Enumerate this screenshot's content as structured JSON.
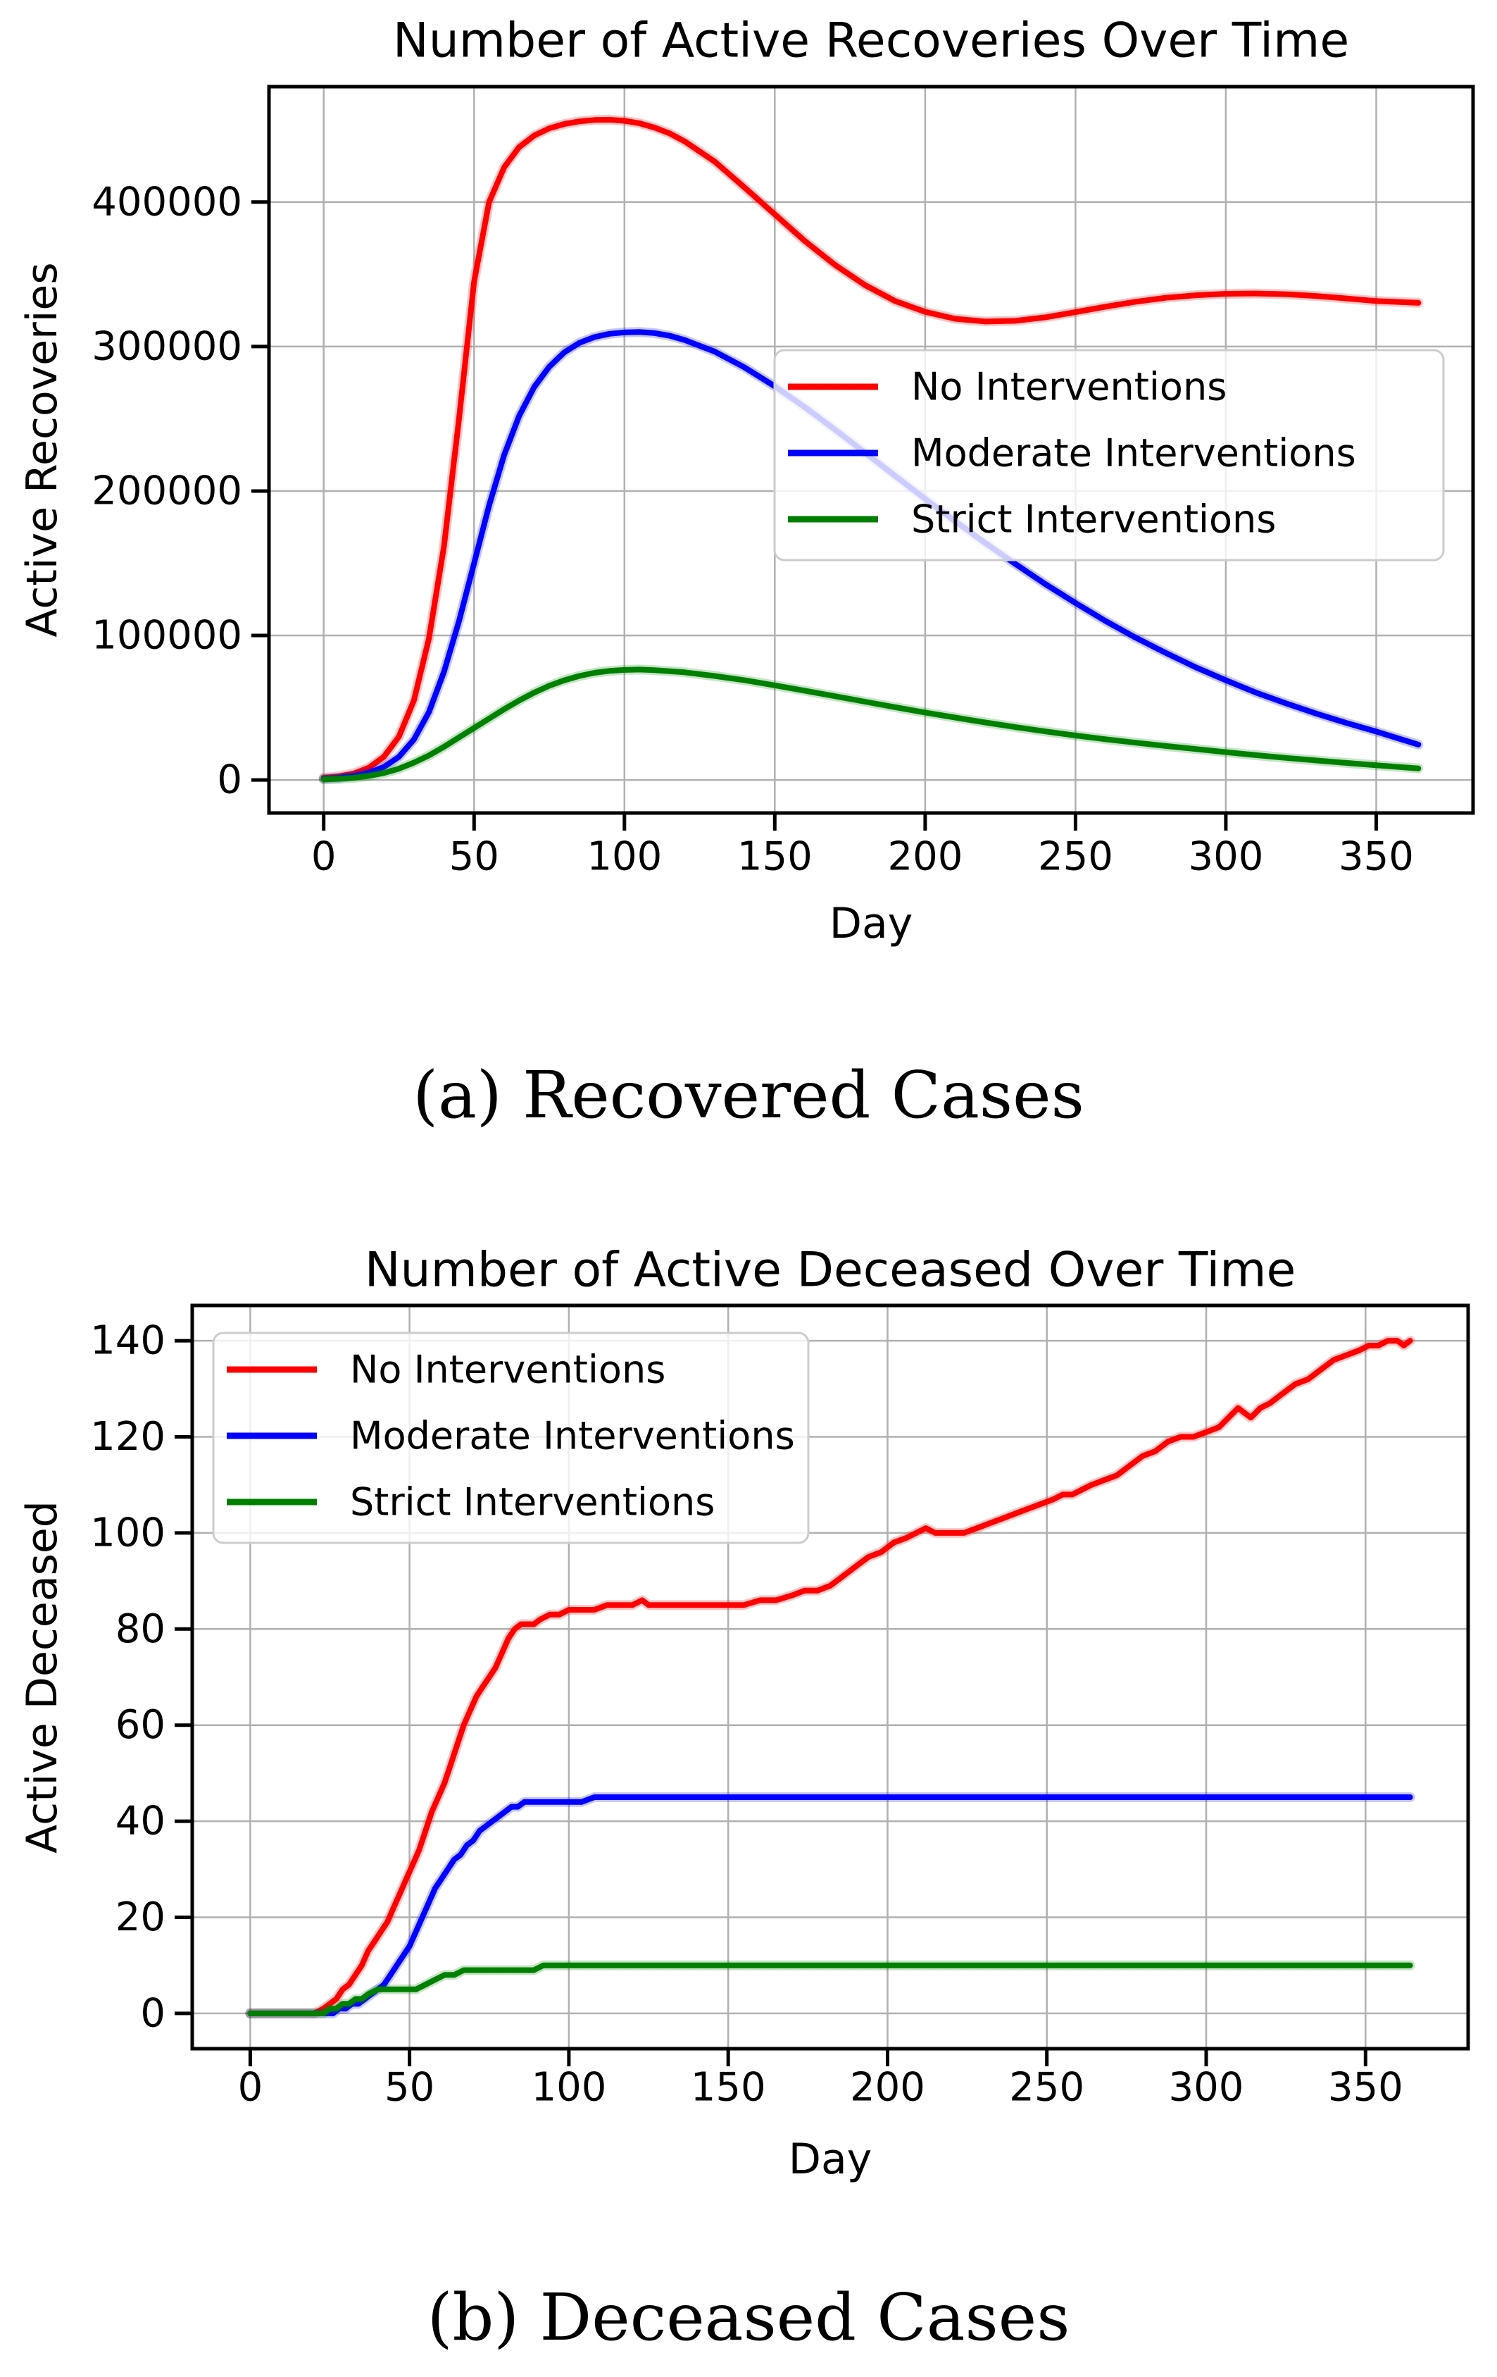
{
  "style": {
    "red": "#ff0000",
    "blue": "#0000ff",
    "green": "#008000",
    "grid": "#b0b0b0",
    "axis": "#000000",
    "legend_border": "#cccccc",
    "background": "#ffffff"
  },
  "figures": [
    {
      "caption": "(a) Recovered Cases"
    },
    {
      "caption": "(b) Deceased Cases"
    }
  ],
  "chart_data": [
    {
      "type": "line",
      "title": "Number of Active Recoveries Over Time",
      "xlabel": "Day",
      "ylabel": "Active Recoveries",
      "xlim": [
        -18.2,
        382.2
      ],
      "ylim": [
        -22850,
        479850
      ],
      "xticks": [
        0,
        50,
        100,
        150,
        200,
        250,
        300,
        350
      ],
      "yticks": [
        0,
        100000,
        200000,
        300000,
        400000
      ],
      "grid": true,
      "legend_loc": "center right",
      "series": [
        {
          "name": "No Interventions",
          "color": "#ff0000",
          "x": [
            0,
            5,
            10,
            15,
            20,
            25,
            30,
            35,
            40,
            45,
            50,
            55,
            60,
            65,
            70,
            75,
            80,
            85,
            90,
            95,
            100,
            105,
            110,
            115,
            120,
            130,
            140,
            150,
            160,
            170,
            180,
            190,
            200,
            210,
            220,
            230,
            240,
            250,
            260,
            270,
            280,
            290,
            300,
            310,
            320,
            330,
            340,
            350,
            364
          ],
          "y": [
            1500,
            2500,
            4500,
            8500,
            16000,
            30000,
            55000,
            98000,
            162000,
            250000,
            345000,
            400000,
            424000,
            438000,
            446000,
            451000,
            454000,
            455800,
            456800,
            457000,
            456200,
            454500,
            451500,
            447500,
            442000,
            428000,
            410000,
            391500,
            373000,
            356500,
            342500,
            331500,
            324000,
            319200,
            317300,
            317800,
            320200,
            323800,
            327600,
            331000,
            333700,
            335500,
            336500,
            336700,
            336200,
            335000,
            333300,
            331500,
            330200
          ]
        },
        {
          "name": "Moderate Interventions",
          "color": "#0000ff",
          "x": [
            0,
            5,
            10,
            15,
            20,
            25,
            30,
            35,
            40,
            45,
            50,
            55,
            60,
            65,
            70,
            75,
            80,
            85,
            90,
            95,
            100,
            105,
            110,
            115,
            120,
            130,
            140,
            150,
            160,
            170,
            180,
            190,
            200,
            210,
            220,
            230,
            240,
            250,
            260,
            270,
            280,
            290,
            300,
            310,
            320,
            330,
            340,
            350,
            364
          ],
          "y": [
            800,
            1500,
            2800,
            5000,
            9000,
            16000,
            28000,
            47000,
            75000,
            110000,
            150000,
            190000,
            225000,
            252000,
            272000,
            286000,
            296000,
            302500,
            306500,
            308800,
            309800,
            310000,
            309300,
            307500,
            304500,
            296500,
            285500,
            272500,
            258000,
            242500,
            226500,
            210500,
            194500,
            179000,
            164000,
            149500,
            135500,
            122500,
            110000,
            98500,
            88000,
            78000,
            69000,
            60500,
            53000,
            46000,
            39500,
            33500,
            24500
          ]
        },
        {
          "name": "Strict Interventions",
          "color": "#008000",
          "x": [
            0,
            5,
            10,
            15,
            20,
            25,
            30,
            35,
            40,
            45,
            50,
            55,
            60,
            65,
            70,
            75,
            80,
            85,
            90,
            95,
            100,
            105,
            110,
            120,
            130,
            140,
            150,
            160,
            170,
            180,
            190,
            200,
            210,
            220,
            230,
            240,
            250,
            260,
            270,
            280,
            290,
            300,
            310,
            320,
            330,
            340,
            350,
            364
          ],
          "y": [
            400,
            800,
            1500,
            2800,
            4800,
            7800,
            12000,
            17000,
            23000,
            29500,
            36000,
            42500,
            49000,
            55000,
            60500,
            65200,
            69000,
            72000,
            74200,
            75500,
            76200,
            76400,
            76000,
            74500,
            72000,
            69000,
            65500,
            61800,
            58000,
            54200,
            50400,
            46700,
            43200,
            39800,
            36600,
            33600,
            30800,
            28200,
            25800,
            23500,
            21400,
            19300,
            17200,
            15300,
            13500,
            11800,
            10200,
            8000
          ]
        }
      ]
    },
    {
      "type": "line",
      "title": "Number of Active Deceased Over Time",
      "xlabel": "Day",
      "ylabel": "Active Deceased",
      "xlim": [
        -18.2,
        382.2
      ],
      "ylim": [
        -7.35,
        147.35
      ],
      "xticks": [
        0,
        50,
        100,
        150,
        200,
        250,
        300,
        350
      ],
      "yticks": [
        0,
        20,
        40,
        60,
        80,
        100,
        120,
        140
      ],
      "grid": true,
      "legend_loc": "upper left",
      "series": [
        {
          "name": "No Interventions",
          "color": "#ff0000",
          "x": [
            0,
            20,
            23,
            25,
            27,
            29,
            31,
            33,
            35,
            37,
            39,
            41,
            43,
            45,
            47,
            49,
            51,
            53,
            55,
            57,
            59,
            61,
            63,
            65,
            67,
            69,
            71,
            73,
            75,
            77,
            79,
            81,
            83,
            85,
            87,
            89,
            91,
            94,
            97,
            100,
            104,
            108,
            112,
            116,
            120,
            123,
            125,
            128,
            132,
            136,
            140,
            145,
            150,
            155,
            160,
            165,
            170,
            174,
            178,
            182,
            186,
            190,
            194,
            198,
            202,
            206,
            209,
            212,
            215,
            218,
            221,
            224,
            228,
            232,
            236,
            240,
            244,
            248,
            252,
            255,
            258,
            261,
            264,
            268,
            272,
            276,
            280,
            284,
            288,
            292,
            296,
            300,
            304,
            307,
            310,
            312,
            314,
            317,
            320,
            324,
            328,
            332,
            336,
            340,
            344,
            348,
            351,
            354,
            357,
            360,
            362,
            364
          ],
          "y": [
            0,
            0,
            1,
            2,
            3,
            5,
            6,
            8,
            10,
            13,
            15,
            17,
            19,
            22,
            25,
            28,
            31,
            34,
            38,
            42,
            45,
            48,
            52,
            56,
            60,
            63,
            66,
            68,
            70,
            72,
            75,
            78,
            80,
            81,
            81,
            81,
            82,
            83,
            83,
            84,
            84,
            84,
            85,
            85,
            85,
            86,
            85,
            85,
            85,
            85,
            85,
            85,
            85,
            85,
            86,
            86,
            87,
            88,
            88,
            89,
            91,
            93,
            95,
            96,
            98,
            99,
            100,
            101,
            100,
            100,
            100,
            100,
            101,
            102,
            103,
            104,
            105,
            106,
            107,
            108,
            108,
            109,
            110,
            111,
            112,
            114,
            116,
            117,
            119,
            120,
            120,
            121,
            122,
            124,
            126,
            125,
            124,
            126,
            127,
            129,
            131,
            132,
            134,
            136,
            137,
            138,
            139,
            139,
            140,
            140,
            139,
            140
          ]
        },
        {
          "name": "Moderate Interventions",
          "color": "#0000ff",
          "x": [
            0,
            26,
            28,
            30,
            32,
            34,
            36,
            38,
            40,
            42,
            44,
            46,
            48,
            50,
            52,
            54,
            56,
            58,
            60,
            62,
            64,
            66,
            68,
            70,
            72,
            74,
            76,
            78,
            80,
            82,
            84,
            86,
            88,
            91,
            95,
            100,
            104,
            108,
            112,
            120,
            140,
            180,
            240,
            300,
            364
          ],
          "y": [
            0,
            0,
            1,
            1,
            2,
            2,
            3,
            4,
            5,
            6,
            8,
            10,
            12,
            14,
            17,
            20,
            23,
            26,
            28,
            30,
            32,
            33,
            35,
            36,
            38,
            39,
            40,
            41,
            42,
            43,
            43,
            44,
            44,
            44,
            44,
            44,
            44,
            45,
            45,
            45,
            45,
            45,
            45,
            45,
            45
          ]
        },
        {
          "name": "Strict Interventions",
          "color": "#008000",
          "x": [
            0,
            23,
            25,
            27,
            29,
            31,
            33,
            35,
            37,
            40,
            44,
            48,
            52,
            55,
            58,
            61,
            64,
            67,
            70,
            74,
            78,
            82,
            86,
            89,
            92,
            96,
            100,
            150,
            200,
            250,
            300,
            364
          ],
          "y": [
            0,
            0,
            1,
            1,
            2,
            2,
            3,
            3,
            4,
            5,
            5,
            5,
            5,
            6,
            7,
            8,
            8,
            9,
            9,
            9,
            9,
            9,
            9,
            9,
            10,
            10,
            10,
            10,
            10,
            10,
            10,
            10
          ]
        }
      ]
    }
  ]
}
